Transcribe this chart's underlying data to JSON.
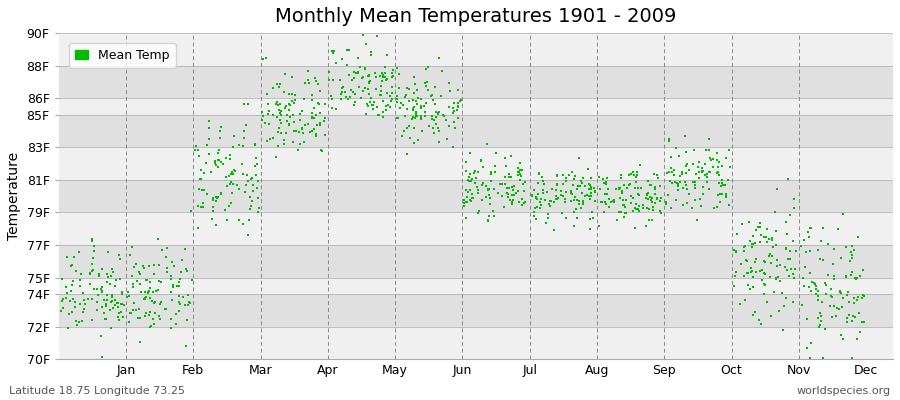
{
  "title": "Monthly Mean Temperatures 1901 - 2009",
  "ylabel": "Temperature",
  "xlabel_labels": [
    "Jan",
    "Feb",
    "Mar",
    "Apr",
    "May",
    "Jun",
    "Jul",
    "Aug",
    "Sep",
    "Oct",
    "Nov",
    "Dec"
  ],
  "ytick_labels": [
    "70F",
    "72F",
    "74F",
    "75F",
    "77F",
    "79F",
    "81F",
    "83F",
    "85F",
    "86F",
    "88F",
    "90F"
  ],
  "ytick_values": [
    70,
    72,
    74,
    75,
    77,
    79,
    81,
    83,
    85,
    86,
    88,
    90
  ],
  "ylim": [
    70,
    90
  ],
  "dot_color": "#00bb00",
  "dot_size": 4,
  "bg_color": "#f0f0f0",
  "band_light": "#f0f0f0",
  "band_dark": "#e0e0e0",
  "grid_color": "#cccccc",
  "legend_label": "Mean Temp",
  "footer_left": "Latitude 18.75 Longitude 73.25",
  "footer_right": "worldspecies.org",
  "title_fontsize": 14,
  "label_fontsize": 9,
  "footer_fontsize": 8,
  "monthly_means": [
    74.0,
    74.0,
    81.0,
    85.0,
    87.0,
    85.5,
    80.5,
    80.0,
    80.0,
    81.0,
    76.0,
    74.5
  ],
  "monthly_stds": [
    1.3,
    1.3,
    1.8,
    1.3,
    1.2,
    1.2,
    0.8,
    0.8,
    0.8,
    1.2,
    2.0,
    2.0
  ],
  "n_years": 109,
  "vline_positions": [
    1.5,
    2.5,
    3.5,
    4.5,
    5.5,
    6.5,
    7.5,
    8.5,
    9.5,
    10.5,
    11.5
  ]
}
